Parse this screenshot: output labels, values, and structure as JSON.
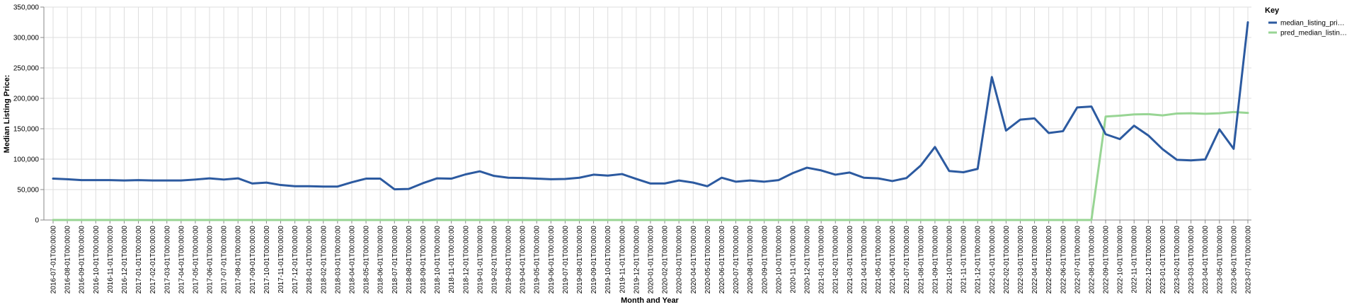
{
  "chart_data": {
    "type": "line",
    "xlabel": "Month and Year",
    "ylabel": "Median Listing Price:",
    "ylim": [
      0,
      350000
    ],
    "y_ticks": [
      0,
      50000,
      100000,
      150000,
      200000,
      250000,
      300000,
      350000
    ],
    "y_tick_labels": [
      "0",
      "50,000",
      "100,000",
      "150,000",
      "200,000",
      "250,000",
      "300,000",
      "350,000"
    ],
    "grid": true,
    "legend": {
      "title": "Key",
      "position": "right"
    },
    "categories": [
      "2016-07-01T00:00:00",
      "2016-08-01T00:00:00",
      "2016-09-01T00:00:00",
      "2016-10-01T00:00:00",
      "2016-11-01T00:00:00",
      "2016-12-01T00:00:00",
      "2017-01-01T00:00:00",
      "2017-02-01T00:00:00",
      "2017-03-01T00:00:00",
      "2017-04-01T00:00:00",
      "2017-05-01T00:00:00",
      "2017-06-01T00:00:00",
      "2017-07-01T00:00:00",
      "2017-08-01T00:00:00",
      "2017-09-01T00:00:00",
      "2017-10-01T00:00:00",
      "2017-11-01T00:00:00",
      "2017-12-01T00:00:00",
      "2018-01-01T00:00:00",
      "2018-02-01T00:00:00",
      "2018-03-01T00:00:00",
      "2018-04-01T00:00:00",
      "2018-05-01T00:00:00",
      "2018-06-01T00:00:00",
      "2018-07-01T00:00:00",
      "2018-08-01T00:00:00",
      "2018-09-01T00:00:00",
      "2018-10-01T00:00:00",
      "2018-11-01T00:00:00",
      "2018-12-01T00:00:00",
      "2019-01-01T00:00:00",
      "2019-02-01T00:00:00",
      "2019-03-01T00:00:00",
      "2019-04-01T00:00:00",
      "2019-05-01T00:00:00",
      "2019-06-01T00:00:00",
      "2019-07-01T00:00:00",
      "2019-08-01T00:00:00",
      "2019-09-01T00:00:00",
      "2019-10-01T00:00:00",
      "2019-11-01T00:00:00",
      "2019-12-01T00:00:00",
      "2020-01-01T00:00:00",
      "2020-02-01T00:00:00",
      "2020-03-01T00:00:00",
      "2020-04-01T00:00:00",
      "2020-05-01T00:00:00",
      "2020-06-01T00:00:00",
      "2020-07-01T00:00:00",
      "2020-08-01T00:00:00",
      "2020-09-01T00:00:00",
      "2020-10-01T00:00:00",
      "2020-11-01T00:00:00",
      "2020-12-01T00:00:00",
      "2021-01-01T00:00:00",
      "2021-02-01T00:00:00",
      "2021-03-01T00:00:00",
      "2021-04-01T00:00:00",
      "2021-05-01T00:00:00",
      "2021-06-01T00:00:00",
      "2021-07-01T00:00:00",
      "2021-08-01T00:00:00",
      "2021-09-01T00:00:00",
      "2021-10-01T00:00:00",
      "2021-11-01T00:00:00",
      "2021-12-01T00:00:00",
      "2022-01-01T00:00:00",
      "2022-02-01T00:00:00",
      "2022-03-01T00:00:00",
      "2022-04-01T00:00:00",
      "2022-05-01T00:00:00",
      "2022-06-01T00:00:00",
      "2022-07-01T00:00:00",
      "2022-08-01T00:00:00",
      "2022-09-01T00:00:00",
      "2022-10-01T00:00:00",
      "2022-11-01T00:00:00",
      "2022-12-01T00:00:00",
      "2023-01-01T00:00:00",
      "2023-02-01T00:00:00",
      "2023-03-01T00:00:00",
      "2023-04-01T00:00:00",
      "2023-05-01T00:00:00",
      "2023-06-01T00:00:00",
      "2023-07-01T00:00:00"
    ],
    "series": [
      {
        "name": "median_listing_pri…",
        "color": "#2c5aa0",
        "values": [
          68000,
          67000,
          65500,
          65500,
          65500,
          65000,
          65500,
          65000,
          65000,
          65000,
          66500,
          68500,
          66500,
          68500,
          60000,
          61500,
          57500,
          55500,
          55500,
          55000,
          55000,
          62000,
          68000,
          68000,
          50500,
          51000,
          60500,
          68500,
          68000,
          75000,
          80000,
          72500,
          69500,
          69000,
          68000,
          67000,
          67500,
          69500,
          74500,
          73000,
          75500,
          67500,
          60000,
          60000,
          65000,
          61500,
          55500,
          69500,
          63000,
          65000,
          63000,
          65500,
          77000,
          86000,
          81500,
          74500,
          78000,
          69500,
          68500,
          64000,
          69000,
          89500,
          120000,
          80500,
          78500,
          84000,
          235000,
          147000,
          165000,
          167000,
          143000,
          146000,
          185000,
          186500,
          141000,
          133000,
          155000,
          139000,
          116500,
          99000,
          98000,
          99500,
          149000,
          117000,
          325000
        ]
      },
      {
        "name": "pred_median_listin…",
        "color": "#98d594",
        "values": [
          0,
          0,
          0,
          0,
          0,
          0,
          0,
          0,
          0,
          0,
          0,
          0,
          0,
          0,
          0,
          0,
          0,
          0,
          0,
          0,
          0,
          0,
          0,
          0,
          0,
          0,
          0,
          0,
          0,
          0,
          0,
          0,
          0,
          0,
          0,
          0,
          0,
          0,
          0,
          0,
          0,
          0,
          0,
          0,
          0,
          0,
          0,
          0,
          0,
          0,
          0,
          0,
          0,
          0,
          0,
          0,
          0,
          0,
          0,
          0,
          0,
          0,
          0,
          0,
          0,
          0,
          0,
          0,
          0,
          0,
          0,
          0,
          0,
          0,
          170000,
          171500,
          173500,
          174000,
          172000,
          175000,
          175500,
          174500,
          175500,
          177500,
          176000
        ]
      }
    ]
  }
}
